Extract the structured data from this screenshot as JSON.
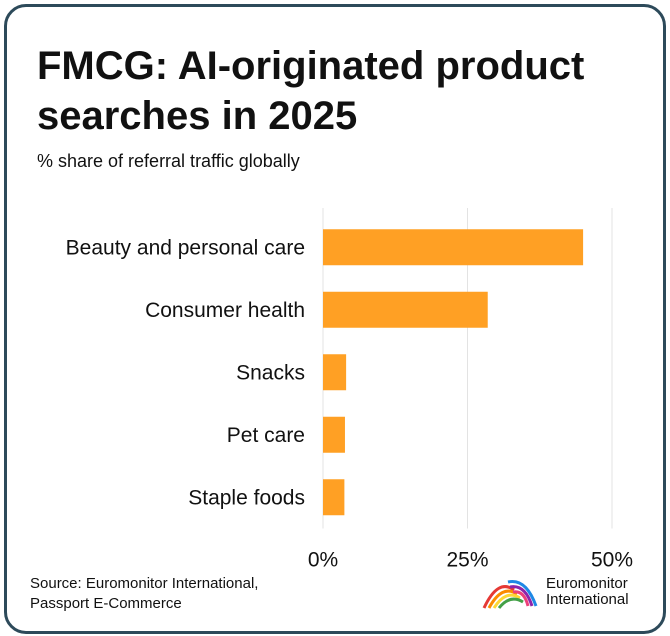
{
  "title": "FMCG: AI-originated product searches in 2025",
  "subtitle": "% share of referral traffic globally",
  "source": {
    "line1": "Source: Euromonitor International,",
    "line2": "Passport E-Commerce"
  },
  "logo": {
    "line1": "Euromonitor",
    "line2": "International",
    "icon": "rainbow-arc-logo-icon"
  },
  "colors": {
    "bar": "#FFA024",
    "border": "#2d4a5a",
    "grid": "#e3e3e3"
  },
  "chart_data": {
    "type": "bar",
    "orientation": "horizontal",
    "categories": [
      "Beauty and personal care",
      "Consumer health",
      "Snacks",
      "Pet care",
      "Staple foods"
    ],
    "values": [
      45,
      28.5,
      4,
      3.8,
      3.7
    ],
    "xlim": [
      0,
      50
    ],
    "xticks": [
      0,
      25,
      50
    ],
    "xtick_labels": [
      "0%",
      "25%",
      "50%"
    ],
    "grid": true,
    "legend": false
  }
}
